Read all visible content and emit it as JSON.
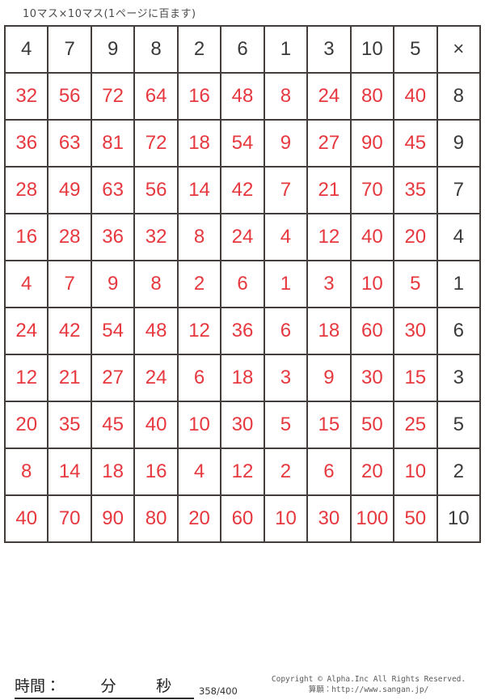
{
  "title": "10マス×10マス(1ページに百ます)",
  "colors": {
    "answer_red": "#e6383e",
    "grid_line": "#433e3b"
  },
  "grid": {
    "header": [
      "4",
      "7",
      "9",
      "8",
      "2",
      "6",
      "1",
      "3",
      "10",
      "5",
      "×"
    ],
    "rows": [
      {
        "answers": [
          "32",
          "56",
          "72",
          "64",
          "16",
          "48",
          "8",
          "24",
          "80",
          "40"
        ],
        "multiplier": "8"
      },
      {
        "answers": [
          "36",
          "63",
          "81",
          "72",
          "18",
          "54",
          "9",
          "27",
          "90",
          "45"
        ],
        "multiplier": "9"
      },
      {
        "answers": [
          "28",
          "49",
          "63",
          "56",
          "14",
          "42",
          "7",
          "21",
          "70",
          "35"
        ],
        "multiplier": "7"
      },
      {
        "answers": [
          "16",
          "28",
          "36",
          "32",
          "8",
          "24",
          "4",
          "12",
          "40",
          "20"
        ],
        "multiplier": "4"
      },
      {
        "answers": [
          "4",
          "7",
          "9",
          "8",
          "2",
          "6",
          "1",
          "3",
          "10",
          "5"
        ],
        "multiplier": "1"
      },
      {
        "answers": [
          "24",
          "42",
          "54",
          "48",
          "12",
          "36",
          "6",
          "18",
          "60",
          "30"
        ],
        "multiplier": "6"
      },
      {
        "answers": [
          "12",
          "21",
          "27",
          "24",
          "6",
          "18",
          "3",
          "9",
          "30",
          "15"
        ],
        "multiplier": "3"
      },
      {
        "answers": [
          "20",
          "35",
          "45",
          "40",
          "10",
          "30",
          "5",
          "15",
          "50",
          "25"
        ],
        "multiplier": "5"
      },
      {
        "answers": [
          "8",
          "14",
          "18",
          "16",
          "4",
          "12",
          "2",
          "6",
          "20",
          "10"
        ],
        "multiplier": "2"
      },
      {
        "answers": [
          "40",
          "70",
          "90",
          "80",
          "20",
          "60",
          "10",
          "30",
          "100",
          "50"
        ],
        "multiplier": "10"
      }
    ]
  },
  "footer": {
    "time_label": "時間：",
    "minutes_label": "分",
    "seconds_label": "秒",
    "page_indicator": "358/400",
    "copyright_line": "Copyright © Alpha.Inc All Rights Reserved.",
    "site_line": "算願：http://www.sangan.jp/"
  }
}
